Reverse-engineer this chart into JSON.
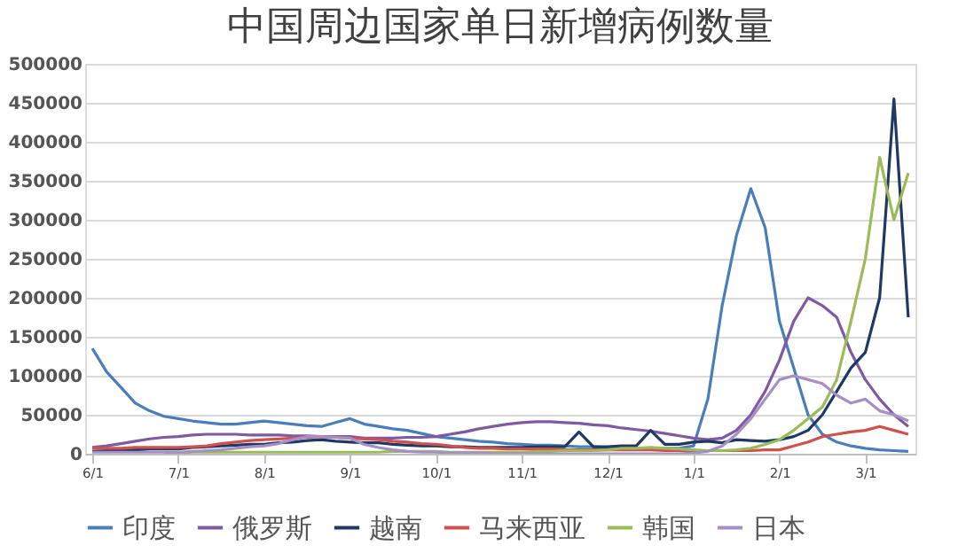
{
  "chart_data": {
    "type": "line",
    "title": "中国周边国家单日新增病例数量",
    "categories": [
      "6/1",
      null,
      null,
      null,
      null,
      null,
      "7/1",
      null,
      null,
      null,
      null,
      null,
      "8/1",
      null,
      null,
      null,
      null,
      null,
      "9/1",
      null,
      null,
      null,
      null,
      null,
      "10/1",
      null,
      null,
      null,
      null,
      null,
      "11/1",
      null,
      null,
      null,
      null,
      null,
      "12/1",
      null,
      null,
      null,
      null,
      null,
      "1/1",
      null,
      null,
      null,
      null,
      null,
      "2/1",
      null,
      null,
      null,
      null,
      null,
      "3/1",
      null,
      null,
      null
    ],
    "series": [
      {
        "name": "印度",
        "color": "#4a7ebb",
        "values": [
          135000,
          105000,
          85000,
          65000,
          55000,
          48000,
          45000,
          42000,
          40000,
          38000,
          38000,
          40000,
          42000,
          40000,
          38000,
          36000,
          35000,
          40000,
          45000,
          38000,
          35000,
          32000,
          30000,
          26000,
          22000,
          20000,
          18000,
          16000,
          15000,
          13000,
          12000,
          11000,
          11000,
          10000,
          9000,
          9000,
          8000,
          8000,
          7000,
          7000,
          7000,
          7000,
          10000,
          70000,
          190000,
          280000,
          340000,
          290000,
          170000,
          110000,
          50000,
          25000,
          15000,
          10000,
          7000,
          5000,
          4000,
          3000
        ]
      },
      {
        "name": "俄罗斯",
        "color": "#7f5aa2",
        "values": [
          8000,
          10000,
          13000,
          16000,
          19000,
          21000,
          22000,
          24000,
          25000,
          25000,
          25000,
          24000,
          24000,
          24000,
          23000,
          23000,
          22000,
          22000,
          22000,
          20000,
          20000,
          20000,
          21000,
          21000,
          22000,
          25000,
          28000,
          32000,
          35000,
          38000,
          40000,
          41000,
          41000,
          40000,
          39000,
          37000,
          36000,
          33000,
          31000,
          29000,
          26000,
          23000,
          20000,
          18000,
          20000,
          30000,
          50000,
          80000,
          120000,
          170000,
          200000,
          190000,
          175000,
          130000,
          95000,
          70000,
          50000,
          35000
        ]
      },
      {
        "name": "越南",
        "color": "#1f3864",
        "values": [
          3000,
          4000,
          4000,
          5000,
          6000,
          6000,
          6000,
          8000,
          9000,
          10000,
          11000,
          12000,
          12000,
          14000,
          15000,
          17000,
          18000,
          16000,
          15000,
          14000,
          14000,
          12000,
          11000,
          10000,
          10000,
          9000,
          9000,
          8000,
          8000,
          8000,
          8000,
          9000,
          9000,
          9000,
          28000,
          9000,
          9000,
          10000,
          10000,
          30000,
          12000,
          12000,
          15000,
          16000,
          14000,
          18000,
          17000,
          16000,
          18000,
          22000,
          30000,
          50000,
          80000,
          110000,
          130000,
          200000,
          455000,
          175000
        ]
      },
      {
        "name": "马来西亚",
        "color": "#d0504d",
        "values": [
          7000,
          7000,
          7000,
          8000,
          8000,
          8000,
          8000,
          9000,
          10000,
          13000,
          15000,
          17000,
          18000,
          19000,
          20000,
          21000,
          22000,
          21000,
          20000,
          19000,
          18000,
          16000,
          15000,
          13000,
          12000,
          10000,
          8000,
          7000,
          7000,
          6000,
          6000,
          6000,
          6000,
          5000,
          5000,
          5000,
          5000,
          5000,
          5000,
          5000,
          4000,
          4000,
          4000,
          4000,
          4000,
          4000,
          4000,
          5000,
          5000,
          10000,
          15000,
          22000,
          25000,
          28000,
          30000,
          35000,
          30000,
          25000
        ]
      },
      {
        "name": "韩国",
        "color": "#9bbb59",
        "values": [
          null,
          null,
          null,
          null,
          null,
          1000,
          1000,
          2000,
          2000,
          2000,
          2000,
          2000,
          2000,
          2000,
          2000,
          2000,
          2000,
          2000,
          2000,
          2000,
          2000,
          3000,
          3000,
          3000,
          3000,
          2000,
          2000,
          2000,
          2000,
          2000,
          2000,
          3000,
          3000,
          4000,
          4000,
          4000,
          5000,
          7000,
          7000,
          8000,
          7000,
          6000,
          5000,
          4000,
          4000,
          5000,
          7000,
          12000,
          18000,
          30000,
          45000,
          60000,
          95000,
          170000,
          250000,
          380000,
          300000,
          360000
        ]
      },
      {
        "name": "日本",
        "color": "#a58fc7",
        "values": [
          2000,
          2000,
          2000,
          2000,
          2000,
          2000,
          2000,
          3000,
          4000,
          5000,
          7000,
          9000,
          10000,
          13000,
          18000,
          22000,
          22000,
          21000,
          20000,
          12000,
          8000,
          5000,
          3000,
          2000,
          2000,
          1000,
          1000,
          1000,
          0,
          0,
          0,
          0,
          0,
          0,
          0,
          0,
          0,
          0,
          0,
          0,
          0,
          0,
          1000,
          3000,
          10000,
          25000,
          45000,
          70000,
          95000,
          100000,
          95000,
          90000,
          75000,
          65000,
          70000,
          55000,
          50000,
          42000
        ]
      }
    ],
    "ylim": [
      0,
      500000
    ],
    "yticks": [
      0,
      50000,
      100000,
      150000,
      200000,
      250000,
      300000,
      350000,
      400000,
      450000,
      500000
    ],
    "grid": "y",
    "legend": "bottom",
    "marker": "none",
    "line_style": "solid"
  }
}
